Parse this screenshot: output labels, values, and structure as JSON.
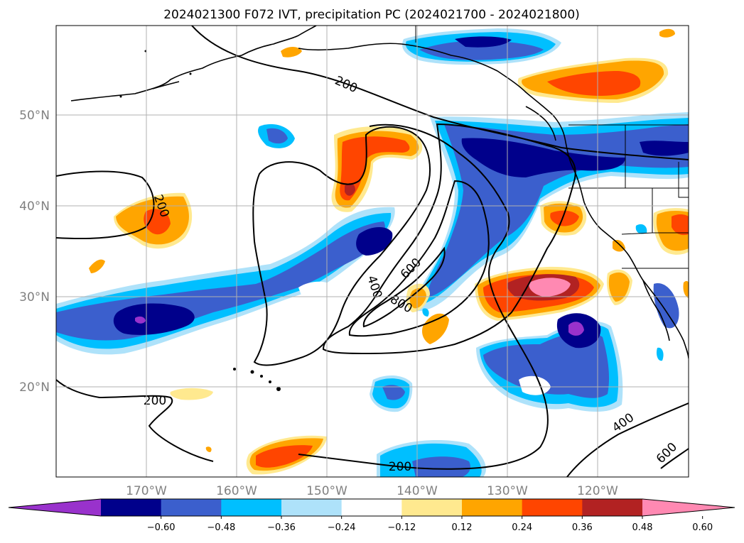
{
  "title": "2024021300 F072 IVT, precipitation PC (2024021700 - 2024021800)",
  "map": {
    "lat_labels": [
      "50°N",
      "40°N",
      "30°N",
      "20°N"
    ],
    "lon_labels": [
      "170°W",
      "160°W",
      "150°W",
      "140°W",
      "130°W",
      "120°W"
    ],
    "contour_labels": [
      "200",
      "200",
      "200",
      "200",
      "400",
      "400",
      "600",
      "600",
      "800"
    ],
    "colors": {
      "-0.66": "#9932cc",
      "-0.54": "#00008b",
      "-0.42": "#3b5fcd",
      "-0.30": "#00bfff",
      "-0.18": "#aee2fa",
      "0.18": "#ffe98f",
      "0.30": "#ffa500",
      "0.42": "#ff4500",
      "0.54": "#b22222",
      "0.66": "#ff89b2"
    }
  },
  "colorbar": {
    "colors": [
      "#9932cc",
      "#00008b",
      "#3b5fcd",
      "#00bfff",
      "#aee2fa",
      "#ffffff",
      "#ffe98f",
      "#ffa500",
      "#ff4500",
      "#b22222",
      "#ff89b2"
    ],
    "tick_labels": [
      "−0.60",
      "−0.48",
      "−0.36",
      "−0.24",
      "−0.12",
      "0.12",
      "0.24",
      "0.36",
      "0.48",
      "0.60"
    ]
  }
}
